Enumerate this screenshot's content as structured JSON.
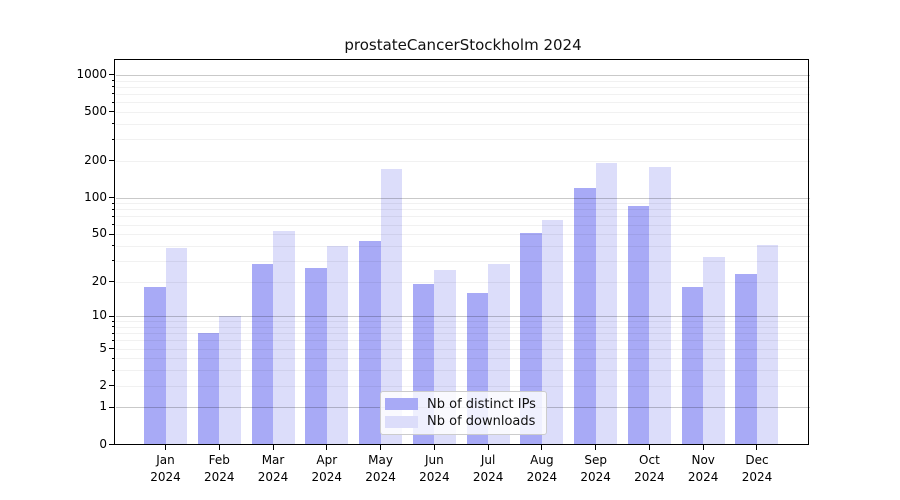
{
  "page": {
    "background": "#ffffff",
    "kind": "static-rendered-plot"
  },
  "chart_data": {
    "type": "bar",
    "title": "prostateCancerStockholm 2024",
    "categories": [
      "Jan",
      "Feb",
      "Mar",
      "Apr",
      "May",
      "Jun",
      "Jul",
      "Aug",
      "Sep",
      "Oct",
      "Nov",
      "Dec"
    ],
    "year_label": "2024",
    "series": [
      {
        "name": "Nb of distinct IPs",
        "color": "#a8aaf6",
        "values": [
          18,
          7,
          28,
          26,
          44,
          19,
          16,
          51,
          120,
          85,
          18,
          23
        ]
      },
      {
        "name": "Nb of downloads",
        "color": "#dcddfa",
        "values": [
          38,
          10,
          53,
          40,
          170,
          25,
          28,
          65,
          193,
          177,
          32,
          41
        ]
      }
    ],
    "xlabel": "",
    "ylabel": "",
    "yscale": "log1p",
    "ylim": [
      0,
      1300
    ],
    "ytick_values": [
      0,
      1,
      2,
      5,
      10,
      20,
      50,
      100,
      200,
      500,
      1000
    ],
    "ytick_labels": [
      "0",
      "1",
      "2",
      "5",
      "10",
      "20",
      "50",
      "100",
      "200",
      "500",
      "1000"
    ],
    "grid": "horizontal",
    "grid_major_at": [
      1,
      10,
      100,
      1000
    ],
    "legend_position": "lower-center",
    "colors": {
      "axis": "#000000",
      "grid_major": "#c9c9c9",
      "grid_minor": "#ececec",
      "title_text": "#111111",
      "tick_text": "#000000"
    }
  }
}
